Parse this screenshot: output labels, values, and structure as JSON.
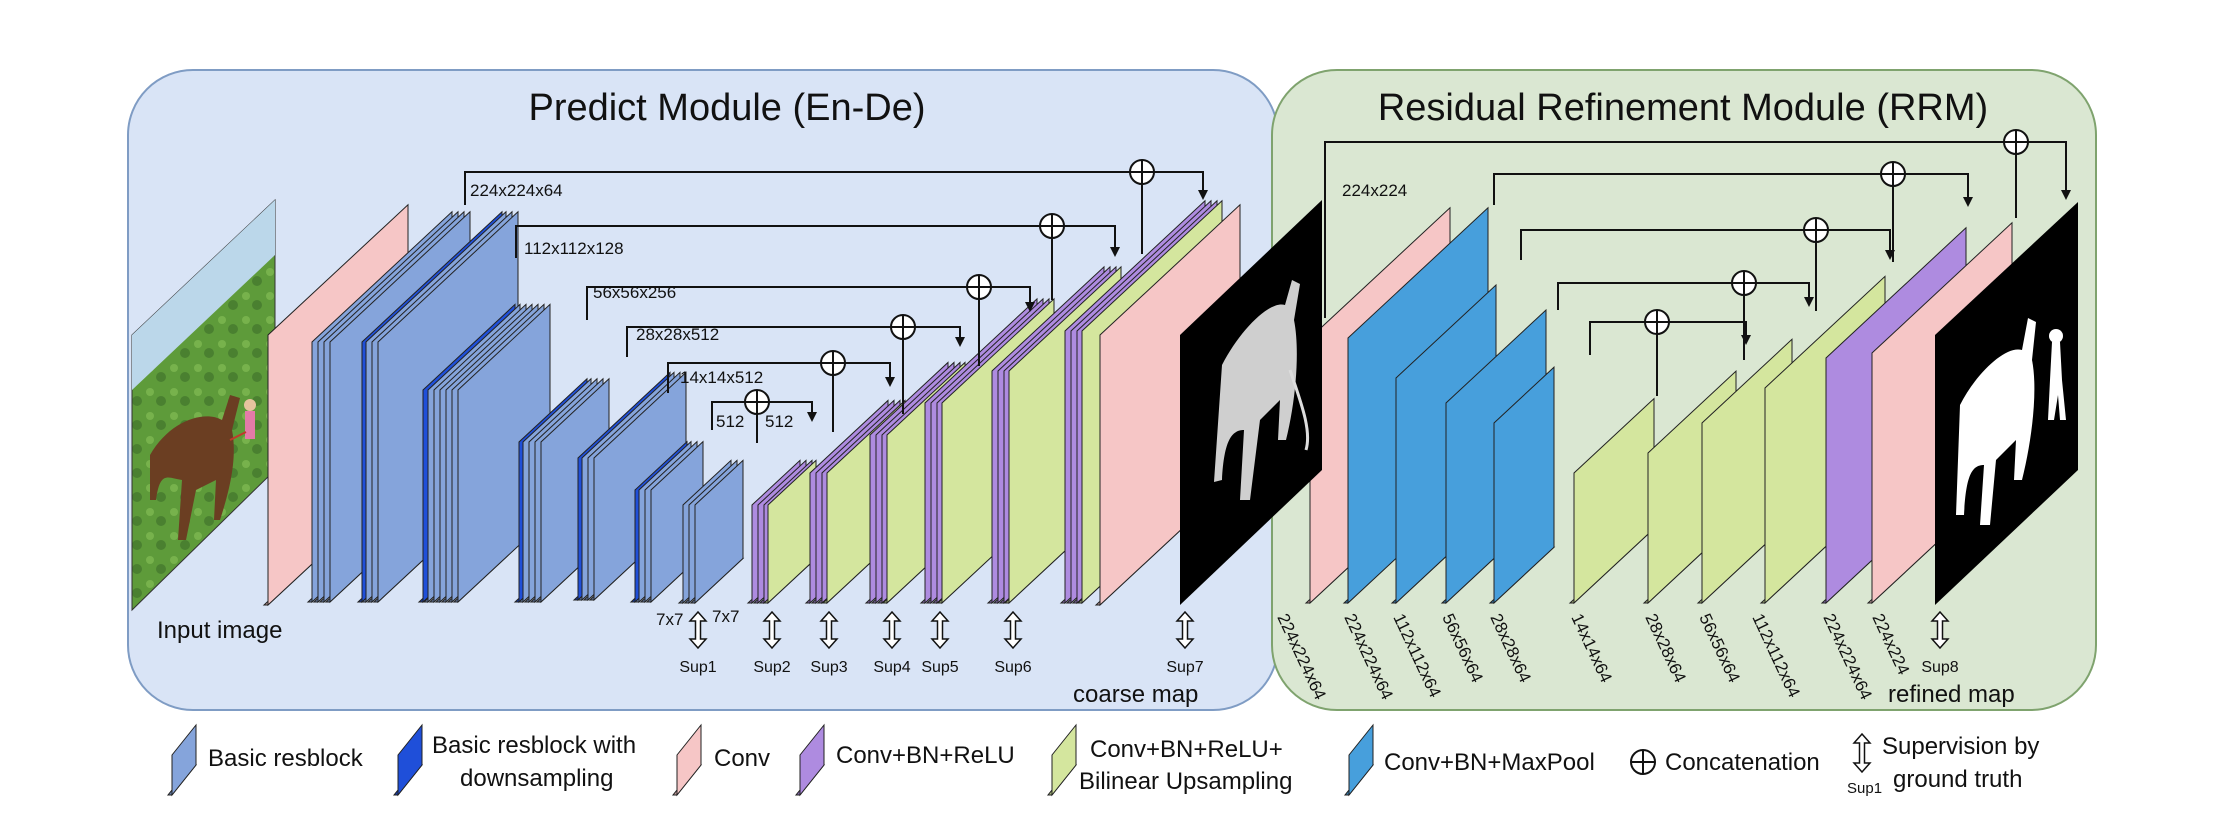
{
  "colors": {
    "basic_resblock": "#85A4DB",
    "basic_resblock_down": "#1F4FD9",
    "conv": "#F6C6C6",
    "conv_bn_relu": "#AE8BE0",
    "conv_bn_relu_up": "#D4E69E",
    "conv_bn_maxpool": "#479FDC",
    "predict_bg": "#D9E4F6",
    "rrm_bg": "#DAE7D2"
  },
  "predict_module": {
    "title": "Predict Module (En-De)",
    "input_label": "Input image",
    "output_label": "coarse map",
    "dims": [
      "224x224x64",
      "112x112x128",
      "56x56x256",
      "28x28x512",
      "14x14x512",
      "512",
      "512",
      "7x7",
      "7x7"
    ],
    "supervision": [
      "Sup1",
      "Sup2",
      "Sup3",
      "Sup4",
      "Sup5",
      "Sup6",
      "Sup7"
    ]
  },
  "rrm": {
    "title": "Residual Refinement Module (RRM)",
    "top_dim": "224x224",
    "output_label": "refined map",
    "dims": [
      "224x224x64",
      "224x224x64",
      "112x112x64",
      "56x56x64",
      "28x28x64",
      "14x14x64",
      "28x28x64",
      "56x56x64",
      "112x112x64",
      "224x224x64",
      "224x224"
    ],
    "supervision": [
      "Sup8"
    ]
  },
  "legend": {
    "basic_resblock": "Basic resblock",
    "basic_resblock_down_1": "Basic resblock with",
    "basic_resblock_down_2": "downsampling",
    "conv": "Conv",
    "conv_bn_relu": "Conv+BN+ReLU",
    "conv_bn_relu_up_1": "Conv+BN+ReLU+",
    "conv_bn_relu_up_2": "Bilinear Upsampling",
    "conv_bn_maxpool": "Conv+BN+MaxPool",
    "concatenation": "Concatenation",
    "supervision_1": "Supervision by",
    "supervision_2": "ground truth",
    "supervision_icon_label": "Sup1"
  }
}
